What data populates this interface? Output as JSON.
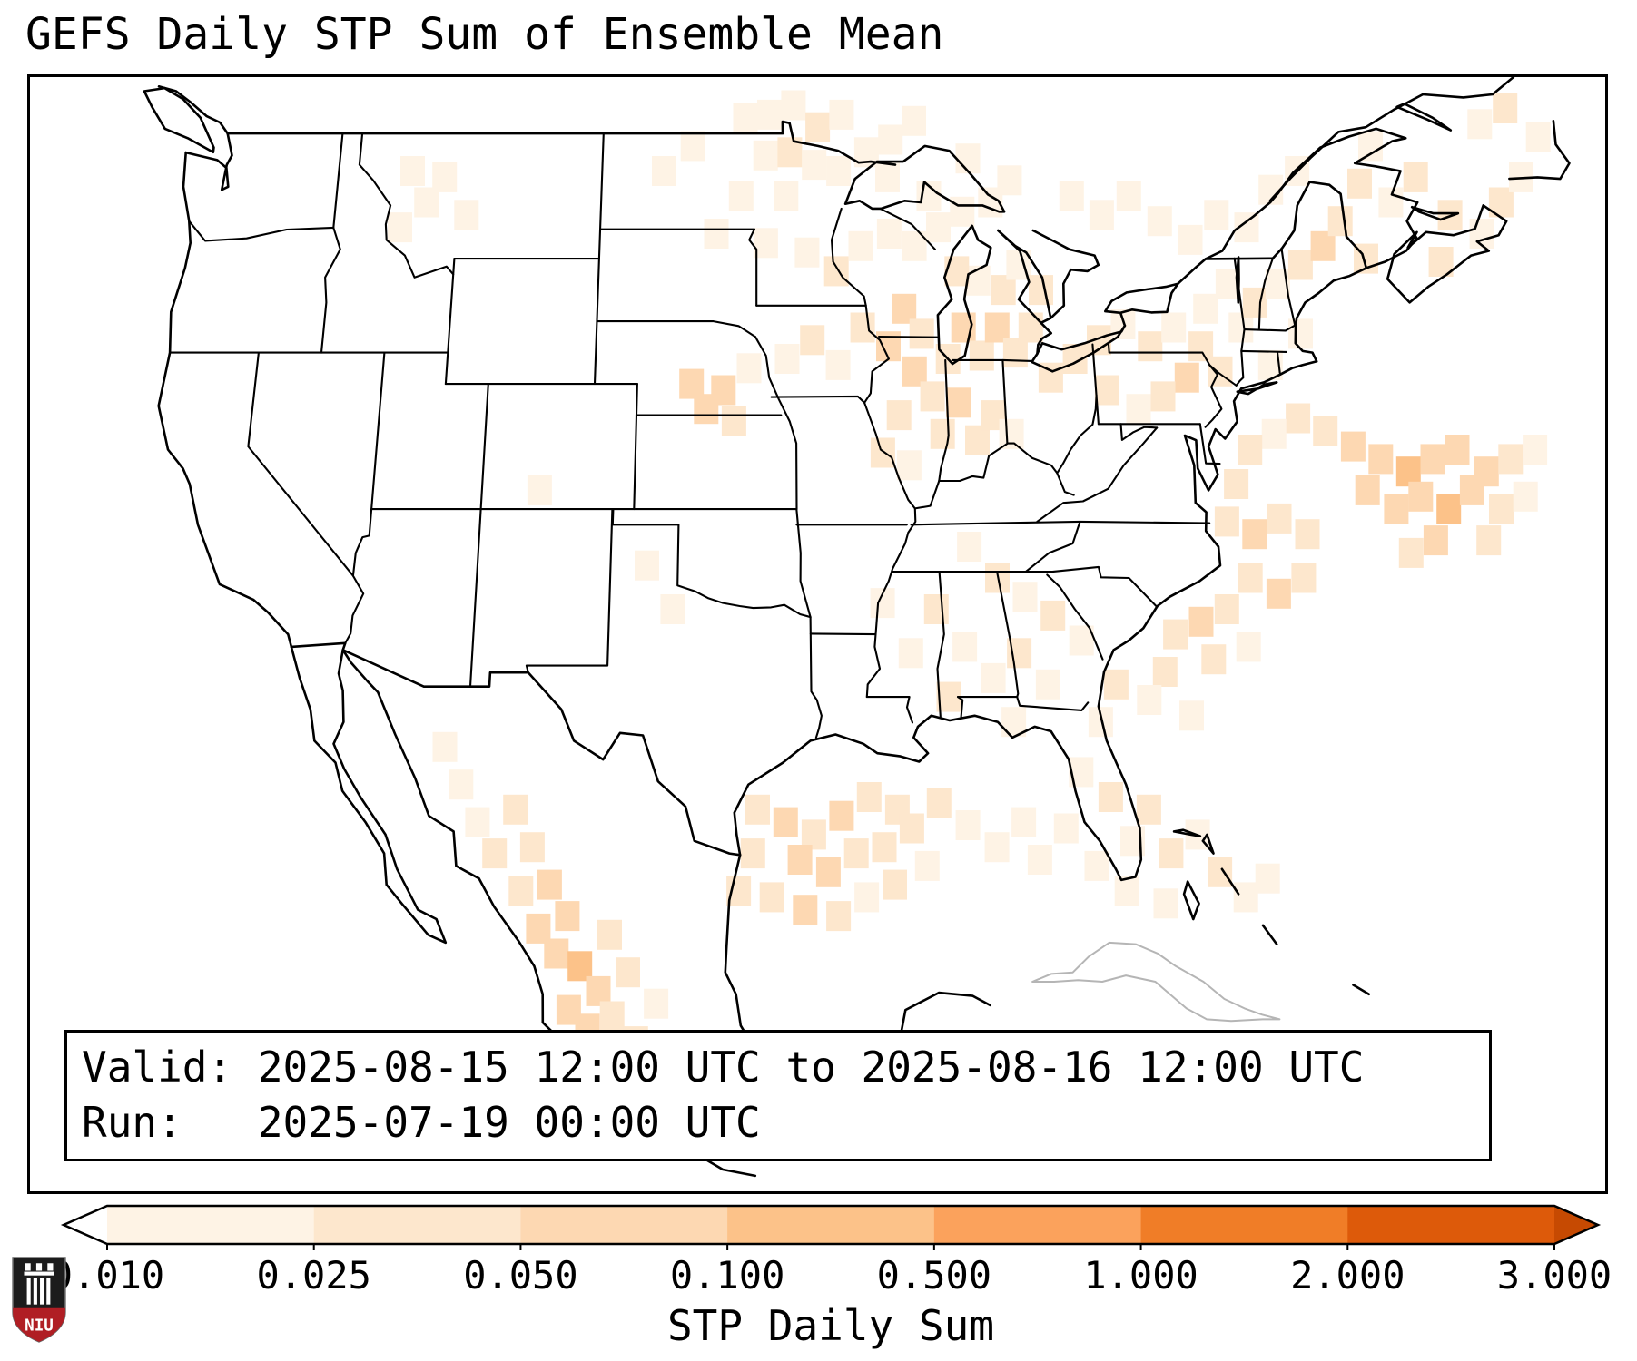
{
  "title": "GEFS Daily STP Sum of Ensemble Mean",
  "info_box": {
    "valid_line": "Valid: 2025-08-15 12:00 UTC to 2025-08-16 12:00 UTC",
    "run_line": "Run:   2025-07-19 00:00 UTC"
  },
  "logo": {
    "text": "NIU"
  },
  "chart_data": {
    "type": "heatmap",
    "subtype": "geographic-grid-map",
    "title": "GEFS Daily STP Sum of Ensemble Mean",
    "valid": "2025-08-15 12:00 UTC to 2025-08-16 12:00 UTC",
    "run": "2025-07-19 00:00 UTC",
    "colors": {
      "coastline": "#000000",
      "state_border": "#000000",
      "foreign_gray": "#b5b5b5",
      "background": "#ffffff"
    },
    "colorbar": {
      "label": "STP Daily Sum",
      "orientation": "horizontal",
      "extend": "both",
      "tick_labels": [
        "0.010",
        "0.025",
        "0.050",
        "0.100",
        "0.500",
        "1.000",
        "2.000",
        "3.000"
      ],
      "tick_values": [
        0.01,
        0.025,
        0.05,
        0.1,
        0.5,
        1.0,
        2.0,
        3.0
      ],
      "segment_colors": [
        "#fef3e5",
        "#fde7cd",
        "#fdd8b2",
        "#fcc289",
        "#fba25c",
        "#f07d27",
        "#dd5a0a"
      ],
      "under_color": "#ffffff",
      "over_color": "#c64a02"
    },
    "cells_format": "[longitude, latitude, stp_daily_sum]",
    "cells": [
      [
        -97,
        49.5,
        0.02
      ],
      [
        -95.8,
        49.6,
        0.015
      ],
      [
        -94.6,
        49.9,
        0.02
      ],
      [
        -93.4,
        49.2,
        0.03
      ],
      [
        -92.2,
        49.6,
        0.02
      ],
      [
        -96,
        48.3,
        0.015
      ],
      [
        -94.8,
        48.4,
        0.03
      ],
      [
        -93.6,
        48,
        0.02
      ],
      [
        -97.2,
        47,
        0.02
      ],
      [
        -95,
        47,
        0.015
      ],
      [
        -92.4,
        47.8,
        0.02
      ],
      [
        -91,
        48.4,
        0.015
      ],
      [
        -89.8,
        48.8,
        0.02
      ],
      [
        -88.6,
        49.4,
        0.015
      ],
      [
        -90,
        47.6,
        0.02
      ],
      [
        -88,
        47,
        0.015
      ],
      [
        -98.4,
        45.8,
        0.02
      ],
      [
        -96,
        45.5,
        0.015
      ],
      [
        -94,
        45.2,
        0.02
      ],
      [
        -92.6,
        44.6,
        0.03
      ],
      [
        -91.4,
        45.4,
        0.02
      ],
      [
        -90,
        45.8,
        0.015
      ],
      [
        -88.8,
        45.4,
        0.02
      ],
      [
        -87.6,
        46,
        0.015
      ],
      [
        -86.4,
        46.5,
        0.02
      ],
      [
        -85,
        46.8,
        0.015
      ],
      [
        -84,
        47.5,
        0.02
      ],
      [
        -86,
        48.2,
        0.015
      ],
      [
        -99.6,
        48.6,
        0.015
      ],
      [
        -101,
        47.8,
        0.01
      ],
      [
        -99.5,
        41,
        0.06
      ],
      [
        -98.8,
        40.2,
        0.08
      ],
      [
        -98,
        40.8,
        0.05
      ],
      [
        -97.5,
        39.8,
        0.03
      ],
      [
        -96.8,
        41.5,
        0.02
      ],
      [
        -95,
        41.8,
        0.02
      ],
      [
        -93.8,
        42.4,
        0.03
      ],
      [
        -92.6,
        41.6,
        0.02
      ],
      [
        -91.4,
        42.8,
        0.04
      ],
      [
        -90.2,
        42.2,
        0.05
      ],
      [
        -89.4,
        43.4,
        0.06
      ],
      [
        -88.6,
        42.6,
        0.04
      ],
      [
        -89,
        41.4,
        0.05
      ],
      [
        -88.2,
        40.6,
        0.03
      ],
      [
        -89.8,
        40,
        0.04
      ],
      [
        -90.6,
        38.8,
        0.03
      ],
      [
        -89.4,
        38.4,
        0.02
      ],
      [
        -87.8,
        39.4,
        0.04
      ],
      [
        -87,
        40.4,
        0.05
      ],
      [
        -86.2,
        39.2,
        0.03
      ],
      [
        -85.4,
        40,
        0.04
      ],
      [
        -84.6,
        39.4,
        0.02
      ],
      [
        -87.4,
        41.8,
        0.04
      ],
      [
        -86.6,
        42.8,
        0.05
      ],
      [
        -85.8,
        41.9,
        0.04
      ],
      [
        -85,
        42.8,
        0.05
      ],
      [
        -84.2,
        42,
        0.03
      ],
      [
        -83.4,
        42.8,
        0.04
      ],
      [
        -84.6,
        44,
        0.03
      ],
      [
        -85.8,
        44.3,
        0.02
      ],
      [
        -86.8,
        44.6,
        0.03
      ],
      [
        -83.8,
        44.8,
        0.02
      ],
      [
        -82.8,
        44,
        0.03
      ],
      [
        -82.6,
        41.2,
        0.03
      ],
      [
        -81.4,
        41.8,
        0.04
      ],
      [
        -80.2,
        42.4,
        0.03
      ],
      [
        -79,
        42.9,
        0.02
      ],
      [
        -77.8,
        42.2,
        0.03
      ],
      [
        -76.6,
        42.8,
        0.02
      ],
      [
        -75.4,
        42.2,
        0.04
      ],
      [
        -74.6,
        41.4,
        0.03
      ],
      [
        -76.2,
        41.2,
        0.05
      ],
      [
        -77.4,
        40.6,
        0.03
      ],
      [
        -78.6,
        40.2,
        0.02
      ],
      [
        -80,
        40.8,
        0.03
      ],
      [
        -73.4,
        42.8,
        0.02
      ],
      [
        -72.6,
        43.6,
        0.03
      ],
      [
        -71.4,
        44.2,
        0.02
      ],
      [
        -70.2,
        44.8,
        0.04
      ],
      [
        -69,
        45.4,
        0.05
      ],
      [
        -68,
        46.2,
        0.04
      ],
      [
        -67,
        45,
        0.03
      ],
      [
        -70.6,
        42.6,
        0.02
      ],
      [
        -72.2,
        41.6,
        0.02
      ],
      [
        -75,
        43.4,
        0.02
      ],
      [
        -73.8,
        44.2,
        0.02
      ],
      [
        -81,
        47,
        0.02
      ],
      [
        -79.6,
        46.4,
        0.015
      ],
      [
        -78.2,
        47,
        0.02
      ],
      [
        -76.8,
        46.2,
        0.015
      ],
      [
        -75.4,
        45.6,
        0.02
      ],
      [
        -74,
        46.4,
        0.015
      ],
      [
        -72.6,
        46,
        0.02
      ],
      [
        -71.2,
        47.2,
        0.015
      ],
      [
        -69.8,
        47.8,
        0.02
      ],
      [
        -66.8,
        47.4,
        0.03
      ],
      [
        -65.4,
        46.8,
        0.02
      ],
      [
        -64,
        47.6,
        0.03
      ],
      [
        -66,
        48.6,
        0.02
      ],
      [
        -62.6,
        46.4,
        0.03
      ],
      [
        -61.2,
        45.8,
        0.02
      ],
      [
        -63.4,
        44.9,
        0.03
      ],
      [
        -60,
        46.8,
        0.03
      ],
      [
        -58.8,
        47.6,
        0.02
      ],
      [
        -60.4,
        49.3,
        0.02
      ],
      [
        -59,
        49.8,
        0.03
      ],
      [
        -57.6,
        48.9,
        0.02
      ],
      [
        -70,
        39.5,
        0.04
      ],
      [
        -68.8,
        39,
        0.06
      ],
      [
        -67.6,
        38.6,
        0.08
      ],
      [
        -66.4,
        38.2,
        0.1
      ],
      [
        -65.2,
        38.6,
        0.08
      ],
      [
        -64,
        38.9,
        0.06
      ],
      [
        -66,
        37.4,
        0.09
      ],
      [
        -67.2,
        37,
        0.07
      ],
      [
        -68.4,
        37.6,
        0.05
      ],
      [
        -64.8,
        37,
        0.11
      ],
      [
        -63.6,
        37.6,
        0.07
      ],
      [
        -65.6,
        36,
        0.06
      ],
      [
        -66.8,
        35.6,
        0.04
      ],
      [
        -71.2,
        39.9,
        0.03
      ],
      [
        -72.4,
        39.4,
        0.02
      ],
      [
        -73.6,
        38.9,
        0.03
      ],
      [
        -74.4,
        37.8,
        0.04
      ],
      [
        -75,
        36.6,
        0.03
      ],
      [
        -73.8,
        36.2,
        0.05
      ],
      [
        -72.6,
        36.7,
        0.04
      ],
      [
        -71.4,
        36.2,
        0.03
      ],
      [
        -74.2,
        34.8,
        0.04
      ],
      [
        -73,
        34.3,
        0.05
      ],
      [
        -71.8,
        34.8,
        0.03
      ],
      [
        -75.4,
        33.8,
        0.04
      ],
      [
        -76.6,
        33.4,
        0.05
      ],
      [
        -77.8,
        33,
        0.04
      ],
      [
        -76.2,
        32.2,
        0.03
      ],
      [
        -74.6,
        32.6,
        0.02
      ],
      [
        -78.4,
        31.8,
        0.03
      ],
      [
        -79.2,
        30.9,
        0.02
      ],
      [
        -77.4,
        30.4,
        0.02
      ],
      [
        -62.8,
        38.2,
        0.05
      ],
      [
        -61.6,
        38.6,
        0.03
      ],
      [
        -62.4,
        37,
        0.04
      ],
      [
        -61.2,
        37.4,
        0.02
      ],
      [
        -63.2,
        36,
        0.03
      ],
      [
        -60.4,
        38.9,
        0.02
      ],
      [
        -86.8,
        35.8,
        0.02
      ],
      [
        -85.6,
        34.8,
        0.03
      ],
      [
        -84.4,
        34.2,
        0.02
      ],
      [
        -83.2,
        33.6,
        0.03
      ],
      [
        -82,
        32.8,
        0.02
      ],
      [
        -84.8,
        32.4,
        0.03
      ],
      [
        -86,
        31.6,
        0.02
      ],
      [
        -87.2,
        32.6,
        0.02
      ],
      [
        -88.4,
        33.8,
        0.03
      ],
      [
        -89.6,
        32.4,
        0.02
      ],
      [
        -90.8,
        34,
        0.02
      ],
      [
        -88,
        31,
        0.03
      ],
      [
        -85.2,
        30.2,
        0.02
      ],
      [
        -83.6,
        31.4,
        0.02
      ],
      [
        -81.4,
        30.2,
        0.02
      ],
      [
        -80.6,
        31.4,
        0.03
      ],
      [
        -96.4,
        27.4,
        0.03
      ],
      [
        -95.2,
        27,
        0.05
      ],
      [
        -94,
        26.6,
        0.04
      ],
      [
        -92.8,
        27.2,
        0.05
      ],
      [
        -91.6,
        27.8,
        0.04
      ],
      [
        -90.4,
        27.4,
        0.03
      ],
      [
        -94.6,
        25.8,
        0.06
      ],
      [
        -93.4,
        25.4,
        0.05
      ],
      [
        -92.2,
        26,
        0.04
      ],
      [
        -95.8,
        24.6,
        0.04
      ],
      [
        -94.4,
        24.2,
        0.05
      ],
      [
        -91,
        26.2,
        0.03
      ],
      [
        -89.8,
        26.8,
        0.04
      ],
      [
        -88.6,
        27.6,
        0.03
      ],
      [
        -87.4,
        26.9,
        0.02
      ],
      [
        -90.6,
        25,
        0.03
      ],
      [
        -89.2,
        25.6,
        0.02
      ],
      [
        -86.2,
        26.2,
        0.02
      ],
      [
        -85,
        27,
        0.02
      ],
      [
        -96.6,
        26,
        0.04
      ],
      [
        -97.2,
        24.8,
        0.03
      ],
      [
        -93,
        24,
        0.03
      ],
      [
        -91.8,
        24.6,
        0.02
      ],
      [
        -82.4,
        28.6,
        0.02
      ],
      [
        -81.2,
        27.8,
        0.03
      ],
      [
        -80.4,
        26.4,
        0.02
      ],
      [
        -79.6,
        27.4,
        0.03
      ],
      [
        -78.8,
        26,
        0.03
      ],
      [
        -77.6,
        26.6,
        0.02
      ],
      [
        -76.8,
        25.4,
        0.03
      ],
      [
        -79.2,
        24.4,
        0.02
      ],
      [
        -80.8,
        24.8,
        0.02
      ],
      [
        -82,
        25.6,
        0.02
      ],
      [
        -83.2,
        26.8,
        0.02
      ],
      [
        -84.4,
        25.8,
        0.02
      ],
      [
        -75.8,
        24.6,
        0.02
      ],
      [
        -74.8,
        25.2,
        0.02
      ],
      [
        -106.8,
        27.4,
        0.03
      ],
      [
        -106,
        26.2,
        0.04
      ],
      [
        -105.2,
        25,
        0.05
      ],
      [
        -104.4,
        24,
        0.06
      ],
      [
        -104.8,
        22.8,
        0.08
      ],
      [
        -103.8,
        22.4,
        0.1
      ],
      [
        -103,
        21.6,
        0.07
      ],
      [
        -105.6,
        23.6,
        0.05
      ],
      [
        -106.4,
        24.8,
        0.04
      ],
      [
        -107.6,
        26,
        0.03
      ],
      [
        -108.4,
        27,
        0.02
      ],
      [
        -102.6,
        23.4,
        0.04
      ],
      [
        -101.8,
        22.2,
        0.03
      ],
      [
        -104.2,
        21,
        0.06
      ],
      [
        -103.4,
        20.4,
        0.05
      ],
      [
        -102.4,
        20.8,
        0.03
      ],
      [
        -109.2,
        28.2,
        0.02
      ],
      [
        -110,
        29.4,
        0.02
      ],
      [
        -101.4,
        20,
        0.04
      ],
      [
        -100.6,
        21.2,
        0.02
      ],
      [
        -113.4,
        47.8,
        0.015
      ],
      [
        -112.6,
        46.8,
        0.02
      ],
      [
        -113.8,
        46,
        0.015
      ],
      [
        -111.8,
        47.6,
        0.015
      ],
      [
        -110.6,
        46.4,
        0.01
      ],
      [
        -106.4,
        37.6,
        0.02
      ],
      [
        -101.4,
        35.2,
        0.02
      ],
      [
        -100.2,
        33.8,
        0.015
      ]
    ]
  }
}
